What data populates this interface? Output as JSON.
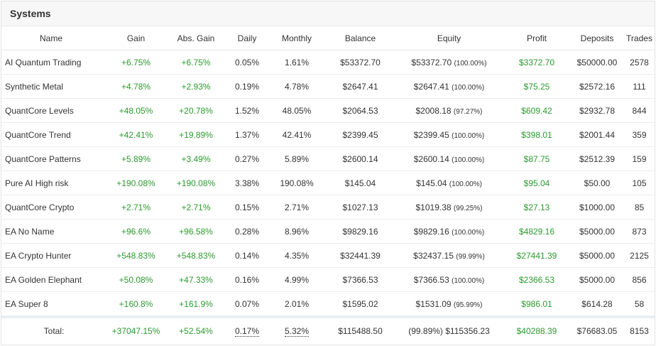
{
  "panel": {
    "title": "Systems"
  },
  "columns": [
    "Name",
    "Gain",
    "Abs. Gain",
    "Daily",
    "Monthly",
    "Balance",
    "Equity",
    "Profit",
    "Deposits",
    "Trades"
  ],
  "rows": [
    {
      "name": "AI Quantum Trading",
      "gain": "+6.75%",
      "abs_gain": "+6.75%",
      "daily": "0.05%",
      "monthly": "1.61%",
      "balance": "$53372.70",
      "equity": "$53372.70",
      "equity_pct": "(100.00%)",
      "profit": "$3372.70",
      "deposits": "$50000.00",
      "trades": "2578"
    },
    {
      "name": "Synthetic Metal",
      "gain": "+4.78%",
      "abs_gain": "+2.93%",
      "daily": "0.19%",
      "monthly": "4.78%",
      "balance": "$2647.41",
      "equity": "$2647.41",
      "equity_pct": "(100.00%)",
      "profit": "$75.25",
      "deposits": "$2572.16",
      "trades": "111"
    },
    {
      "name": "QuantCore Levels",
      "gain": "+48.05%",
      "abs_gain": "+20.78%",
      "daily": "1.52%",
      "monthly": "48.05%",
      "balance": "$2064.53",
      "equity": "$2008.18",
      "equity_pct": "(97.27%)",
      "profit": "$609.42",
      "deposits": "$2932.78",
      "trades": "844"
    },
    {
      "name": "QuantCore Trend",
      "gain": "+42.41%",
      "abs_gain": "+19.89%",
      "daily": "1.37%",
      "monthly": "42.41%",
      "balance": "$2399.45",
      "equity": "$2399.45",
      "equity_pct": "(100.00%)",
      "profit": "$398.01",
      "deposits": "$2001.44",
      "trades": "359"
    },
    {
      "name": "QuantCore Patterns",
      "gain": "+5.89%",
      "abs_gain": "+3.49%",
      "daily": "0.27%",
      "monthly": "5.89%",
      "balance": "$2600.14",
      "equity": "$2600.14",
      "equity_pct": "(100.00%)",
      "profit": "$87.75",
      "deposits": "$2512.39",
      "trades": "159"
    },
    {
      "name": "Pure AI High risk",
      "gain": "+190.08%",
      "abs_gain": "+190.08%",
      "daily": "3.38%",
      "monthly": "190.08%",
      "balance": "$145.04",
      "equity": "$145.04",
      "equity_pct": "(100.00%)",
      "profit": "$95.04",
      "deposits": "$50.00",
      "trades": "105"
    },
    {
      "name": "QuantCore Crypto",
      "gain": "+2.71%",
      "abs_gain": "+2.71%",
      "daily": "0.15%",
      "monthly": "2.71%",
      "balance": "$1027.13",
      "equity": "$1019.38",
      "equity_pct": "(99.25%)",
      "profit": "$27.13",
      "deposits": "$1000.00",
      "trades": "85"
    },
    {
      "name": "EA No Name",
      "gain": "+96.6%",
      "abs_gain": "+96.58%",
      "daily": "0.28%",
      "monthly": "8.96%",
      "balance": "$9829.16",
      "equity": "$9829.16",
      "equity_pct": "(100.00%)",
      "profit": "$4829.16",
      "deposits": "$5000.00",
      "trades": "873"
    },
    {
      "name": "EA Crypto Hunter",
      "gain": "+548.83%",
      "abs_gain": "+548.83%",
      "daily": "0.14%",
      "monthly": "4.35%",
      "balance": "$32441.39",
      "equity": "$32437.15",
      "equity_pct": "(99.99%)",
      "profit": "$27441.39",
      "deposits": "$5000.00",
      "trades": "2125"
    },
    {
      "name": "EA Golden Elephant",
      "gain": "+50.08%",
      "abs_gain": "+47.33%",
      "daily": "0.16%",
      "monthly": "4.99%",
      "balance": "$7366.53",
      "equity": "$7366.53",
      "equity_pct": "(100.00%)",
      "profit": "$2366.53",
      "deposits": "$5000.00",
      "trades": "856"
    },
    {
      "name": "EA Super 8",
      "gain": "+160.8%",
      "abs_gain": "+161.9%",
      "daily": "0.07%",
      "monthly": "2.01%",
      "balance": "$1595.02",
      "equity": "$1531.09",
      "equity_pct": "(95.99%)",
      "profit": "$986.01",
      "deposits": "$614.28",
      "trades": "58"
    }
  ],
  "totals": {
    "label": "Total:",
    "gain": "+37047.15%",
    "abs_gain": "+52.54%",
    "daily": "0.17%",
    "monthly": "5.32%",
    "balance": "$115488.50",
    "equity": "(99.89%) $115356.23",
    "profit": "$40288.39",
    "deposits": "$76683.05",
    "trades": "8153"
  },
  "colors": {
    "positive": "#2b9a2e",
    "header_bg": "#f7f7f7",
    "border": "#e4e4e4"
  }
}
